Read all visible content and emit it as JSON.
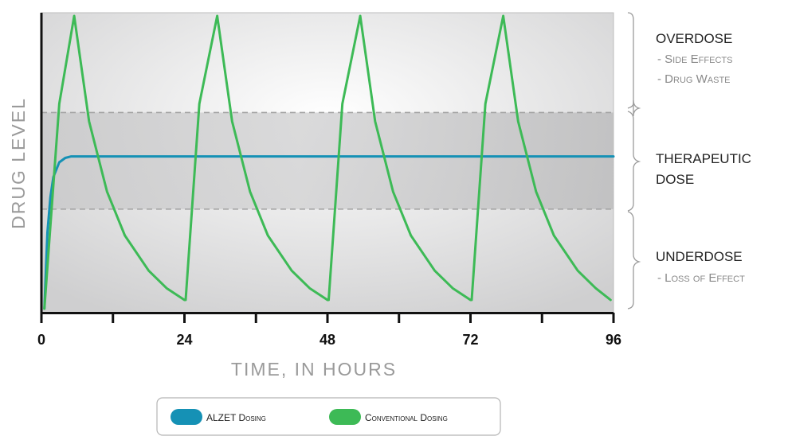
{
  "chart_data": {
    "type": "line",
    "xlabel": "TIME, IN HOURS",
    "ylabel": "DRUG LEVEL",
    "xlim": [
      0,
      96
    ],
    "ylim": [
      0,
      100
    ],
    "x_ticks": [
      0,
      24,
      48,
      72,
      96
    ],
    "minor_ticks": [
      12,
      36,
      60,
      84
    ],
    "y_ticks_shown": false,
    "thresholds": {
      "lower": 34,
      "upper": 67
    },
    "zones": [
      {
        "title": "OVERDOSE",
        "subtitle": [
          "- Side Effects",
          "- Drug Waste"
        ]
      },
      {
        "title": "THERAPEUTIC",
        "subtitle": [
          "DOSE"
        ]
      },
      {
        "title": "UNDERDOSE",
        "subtitle": [
          "- Loss of Effect"
        ]
      }
    ],
    "series": [
      {
        "name": "ALZET Dosing",
        "color": "#1591b5",
        "x": [
          0.5,
          1,
          1.5,
          2,
          3,
          4,
          5,
          6,
          12,
          24,
          36,
          48,
          60,
          72,
          84,
          96
        ],
        "y": [
          0,
          26,
          38,
          45,
          50,
          51.5,
          52,
          52,
          52,
          52,
          52,
          52,
          52,
          52,
          52,
          52
        ]
      },
      {
        "name": "Conventional Dosing",
        "color": "#3dba56",
        "x": [
          0.5,
          3,
          5.5,
          8,
          11,
          14,
          18,
          21,
          24,
          24.2,
          26.5,
          29.5,
          32,
          35,
          38,
          42,
          45,
          48,
          48.2,
          50.5,
          53.5,
          56,
          59,
          62,
          66,
          69,
          72,
          72.2,
          74.5,
          77.5,
          80,
          83,
          86,
          90,
          93,
          95.5
        ],
        "y": [
          0,
          70,
          100,
          64,
          40,
          25,
          13,
          7,
          3,
          3,
          70,
          100,
          64,
          40,
          25,
          13,
          7,
          3,
          3,
          70,
          100,
          64,
          40,
          25,
          13,
          7,
          3,
          3,
          70,
          100,
          64,
          40,
          25,
          13,
          7,
          3
        ]
      }
    ],
    "legend": {
      "position": "bottom-center"
    }
  }
}
